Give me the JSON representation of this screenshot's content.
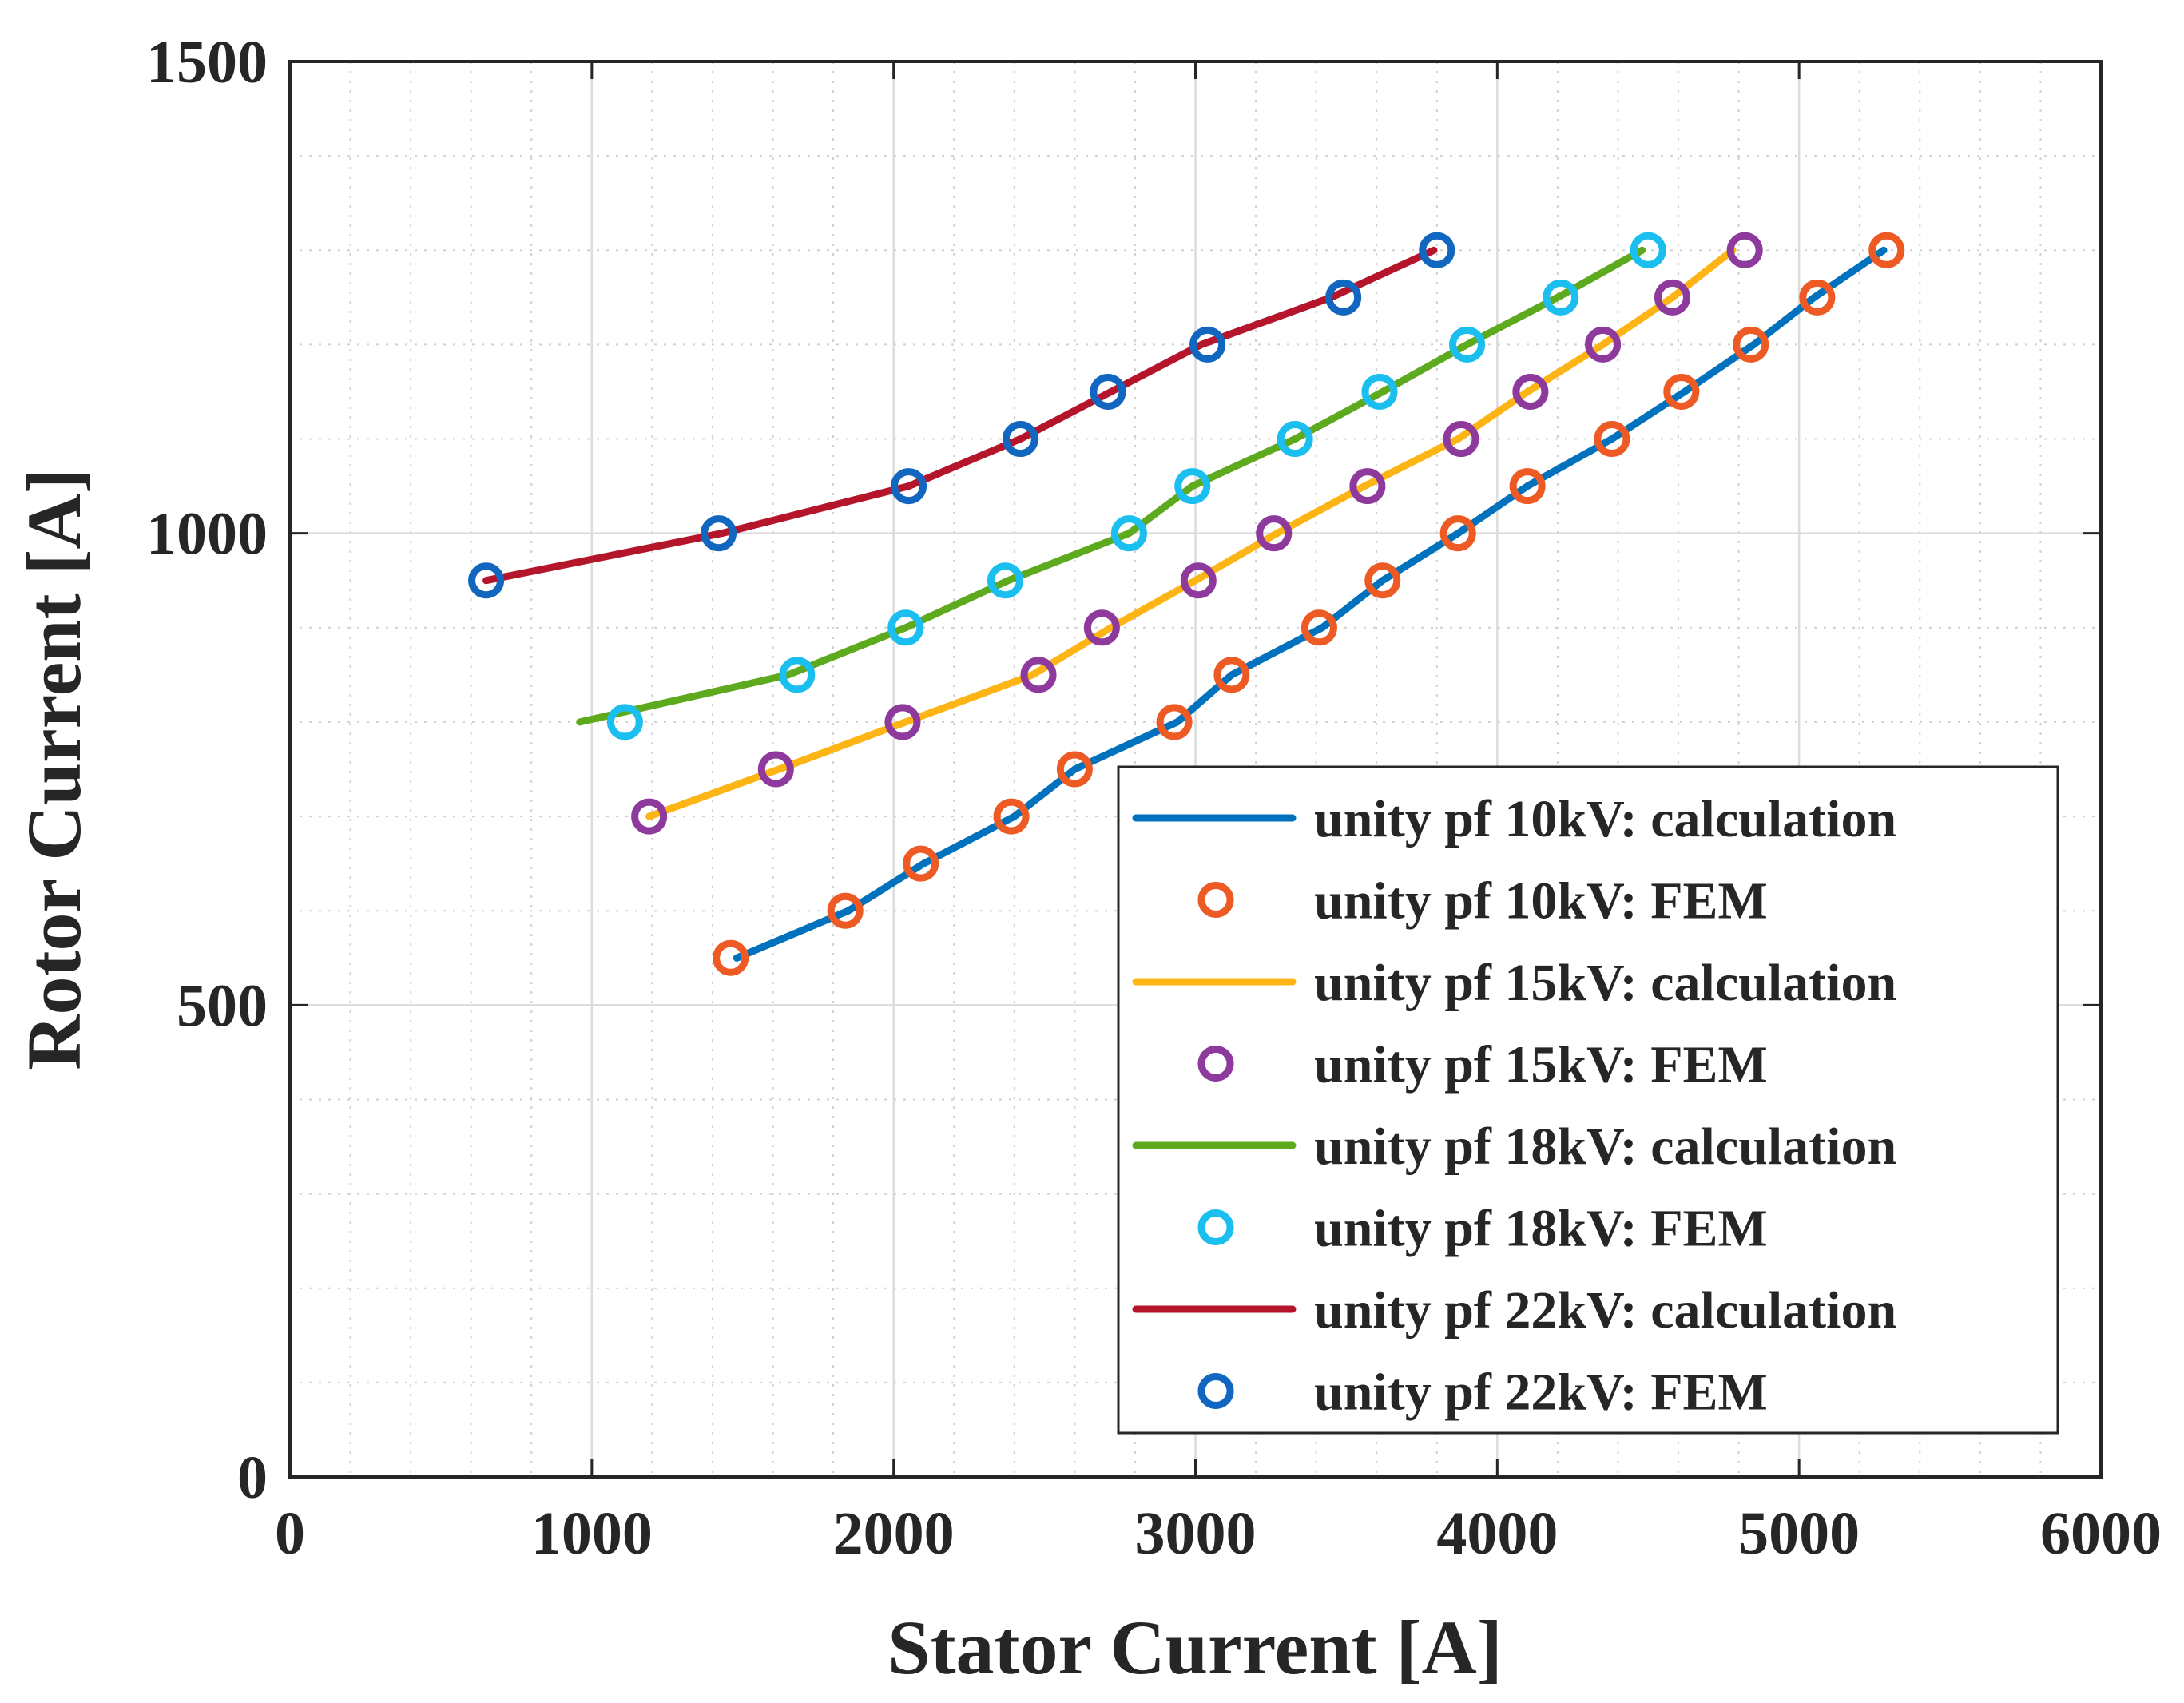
{
  "chart_data": {
    "type": "line",
    "title": "",
    "xlabel": "Stator Current [A]",
    "ylabel": "Rotor Current [A]",
    "xlim": [
      0,
      6000
    ],
    "ylim": [
      0,
      1500
    ],
    "x_ticks": [
      0,
      1000,
      2000,
      3000,
      4000,
      5000,
      6000
    ],
    "x_tick_labels": [
      "0",
      "1000",
      "2000",
      "3000",
      "4000",
      "5000",
      "6000"
    ],
    "y_ticks": [
      0,
      500,
      1000,
      1500
    ],
    "y_tick_labels": [
      "0",
      "500",
      "1000",
      "1500"
    ],
    "x_minor_ticks": [
      200,
      400,
      600,
      800,
      1200,
      1400,
      1600,
      1800,
      2200,
      2400,
      2600,
      2800,
      3200,
      3400,
      3600,
      3800,
      4200,
      4400,
      4600,
      4800,
      5200,
      5400,
      5600,
      5800
    ],
    "y_minor_ticks": [
      100,
      200,
      300,
      400,
      600,
      700,
      800,
      900,
      1100,
      1200,
      1300,
      1400
    ],
    "grid": true,
    "legend_position": "bottom-right",
    "series": [
      {
        "name": "unity pf 10kV: calculation",
        "kind": "line",
        "color": "#0072BD",
        "points": [
          [
            1480,
            550
          ],
          [
            1850,
            600
          ],
          [
            2100,
            650
          ],
          [
            2400,
            700
          ],
          [
            2600,
            750
          ],
          [
            2940,
            800
          ],
          [
            3120,
            850
          ],
          [
            3420,
            900
          ],
          [
            3620,
            950
          ],
          [
            3870,
            1000
          ],
          [
            4100,
            1050
          ],
          [
            4380,
            1100
          ],
          [
            4620,
            1150
          ],
          [
            4850,
            1200
          ],
          [
            5050,
            1250
          ],
          [
            5280,
            1300
          ]
        ]
      },
      {
        "name": "unity pf 10kV: FEM",
        "kind": "markers",
        "color": "#EE5A24",
        "points": [
          [
            1460,
            550
          ],
          [
            1840,
            600
          ],
          [
            2090,
            650
          ],
          [
            2390,
            700
          ],
          [
            2600,
            750
          ],
          [
            2930,
            800
          ],
          [
            3120,
            850
          ],
          [
            3410,
            900
          ],
          [
            3620,
            950
          ],
          [
            3870,
            1000
          ],
          [
            4100,
            1050
          ],
          [
            4380,
            1100
          ],
          [
            4610,
            1150
          ],
          [
            4840,
            1200
          ],
          [
            5060,
            1250
          ],
          [
            5290,
            1300
          ]
        ]
      },
      {
        "name": "unity pf 15kV: calculation",
        "kind": "line",
        "color": "#FDB515",
        "points": [
          [
            1190,
            700
          ],
          [
            1620,
            750
          ],
          [
            2040,
            800
          ],
          [
            2460,
            850
          ],
          [
            2720,
            900
          ],
          [
            3000,
            950
          ],
          [
            3270,
            1000
          ],
          [
            3560,
            1050
          ],
          [
            3870,
            1100
          ],
          [
            4100,
            1150
          ],
          [
            4350,
            1200
          ],
          [
            4580,
            1250
          ],
          [
            4780,
            1300
          ]
        ]
      },
      {
        "name": "unity pf 15kV: FEM",
        "kind": "markers",
        "color": "#8E3A9C",
        "points": [
          [
            1190,
            700
          ],
          [
            1610,
            750
          ],
          [
            2030,
            800
          ],
          [
            2480,
            850
          ],
          [
            2690,
            900
          ],
          [
            3010,
            950
          ],
          [
            3260,
            1000
          ],
          [
            3570,
            1050
          ],
          [
            3880,
            1100
          ],
          [
            4110,
            1150
          ],
          [
            4350,
            1200
          ],
          [
            4580,
            1250
          ],
          [
            4820,
            1300
          ]
        ]
      },
      {
        "name": "unity pf 18kV: calculation",
        "kind": "line",
        "color": "#5DAA1E",
        "points": [
          [
            960,
            800
          ],
          [
            1650,
            850
          ],
          [
            2040,
            900
          ],
          [
            2380,
            950
          ],
          [
            2780,
            1000
          ],
          [
            2990,
            1050
          ],
          [
            3330,
            1100
          ],
          [
            3620,
            1150
          ],
          [
            3900,
            1200
          ],
          [
            4200,
            1250
          ],
          [
            4480,
            1300
          ]
        ]
      },
      {
        "name": "unity pf 18kV: FEM",
        "kind": "markers",
        "color": "#1ABFF0",
        "points": [
          [
            1110,
            800
          ],
          [
            1680,
            850
          ],
          [
            2040,
            900
          ],
          [
            2370,
            950
          ],
          [
            2780,
            1000
          ],
          [
            2990,
            1050
          ],
          [
            3330,
            1100
          ],
          [
            3610,
            1150
          ],
          [
            3900,
            1200
          ],
          [
            4210,
            1250
          ],
          [
            4500,
            1300
          ]
        ]
      },
      {
        "name": "unity pf 22kV: calculation",
        "kind": "line",
        "color": "#B5152B",
        "points": [
          [
            650,
            950
          ],
          [
            1430,
            1000
          ],
          [
            2050,
            1050
          ],
          [
            2420,
            1100
          ],
          [
            2720,
            1150
          ],
          [
            3020,
            1200
          ],
          [
            3450,
            1250
          ],
          [
            3790,
            1300
          ]
        ]
      },
      {
        "name": "unity pf 22kV: FEM",
        "kind": "markers",
        "color": "#1166C0",
        "points": [
          [
            650,
            950
          ],
          [
            1420,
            1000
          ],
          [
            2050,
            1050
          ],
          [
            2420,
            1100
          ],
          [
            2710,
            1150
          ],
          [
            3040,
            1200
          ],
          [
            3490,
            1250
          ],
          [
            3800,
            1300
          ]
        ]
      }
    ]
  }
}
